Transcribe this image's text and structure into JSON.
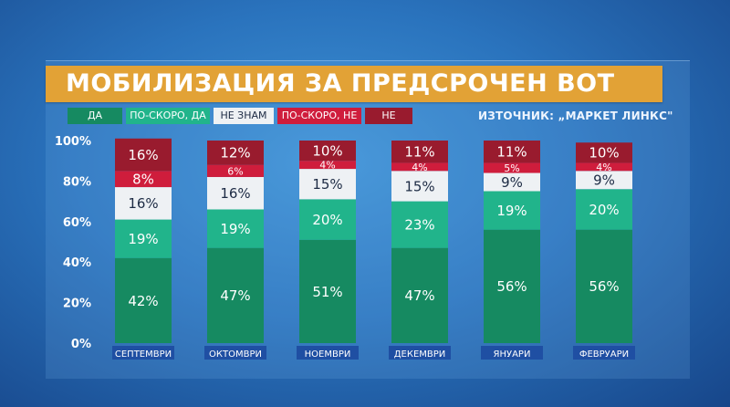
{
  "colors": {
    "da": "#168a61",
    "po_skoro_da": "#21b48b",
    "ne_znam": "#eef1f4",
    "po_skoro_ne": "#cf1d3c",
    "ne": "#991b2e",
    "title_bar": "#e2a236"
  },
  "legend": {
    "items": [
      {
        "label": "ДА",
        "color": "#168a61",
        "text_color": "#ffffff"
      },
      {
        "label": "ПО-СКОРО, ДА",
        "color": "#21b48b",
        "text_color": "#ffffff"
      },
      {
        "label": "НЕ ЗНАМ",
        "color": "#eef1f4",
        "text_color": "#1d2b44"
      },
      {
        "label": "ПО-СКОРО, НЕ",
        "color": "#cf1d3c",
        "text_color": "#ffffff"
      },
      {
        "label": "НЕ",
        "color": "#991b2e",
        "text_color": "#ffffff"
      }
    ]
  },
  "source_text": "ИЗТОЧНИК: „МАРКЕТ ЛИНКС\"",
  "chart_data": {
    "type": "bar",
    "stacked": true,
    "title": "МОБИЛИЗАЦИЯ ЗА ПРЕДСРОЧЕН ВОТ",
    "categories": [
      "СЕПТЕМВРИ",
      "ОКТОМВРИ",
      "НОЕМВРИ",
      "ДЕКЕМВРИ",
      "ЯНУАРИ",
      "ФЕВРУАРИ"
    ],
    "series": [
      {
        "name": "ДА",
        "color": "#168a61",
        "values": [
          42,
          47,
          51,
          47,
          56,
          56
        ]
      },
      {
        "name": "ПО-СКОРО, ДА",
        "color": "#21b48b",
        "values": [
          19,
          19,
          20,
          23,
          19,
          20
        ]
      },
      {
        "name": "НЕ ЗНАМ",
        "color": "#eef1f4",
        "values": [
          16,
          16,
          15,
          15,
          9,
          9
        ]
      },
      {
        "name": "ПО-СКОРО, НЕ",
        "color": "#cf1d3c",
        "values": [
          8,
          6,
          4,
          4,
          5,
          4
        ]
      },
      {
        "name": "НЕ",
        "color": "#991b2e",
        "values": [
          16,
          12,
          10,
          11,
          11,
          10
        ]
      }
    ],
    "yticks": [
      "0%",
      "20%",
      "40%",
      "60%",
      "80%",
      "100%"
    ],
    "ylim": [
      0,
      100
    ],
    "legend_position": "top-left"
  }
}
